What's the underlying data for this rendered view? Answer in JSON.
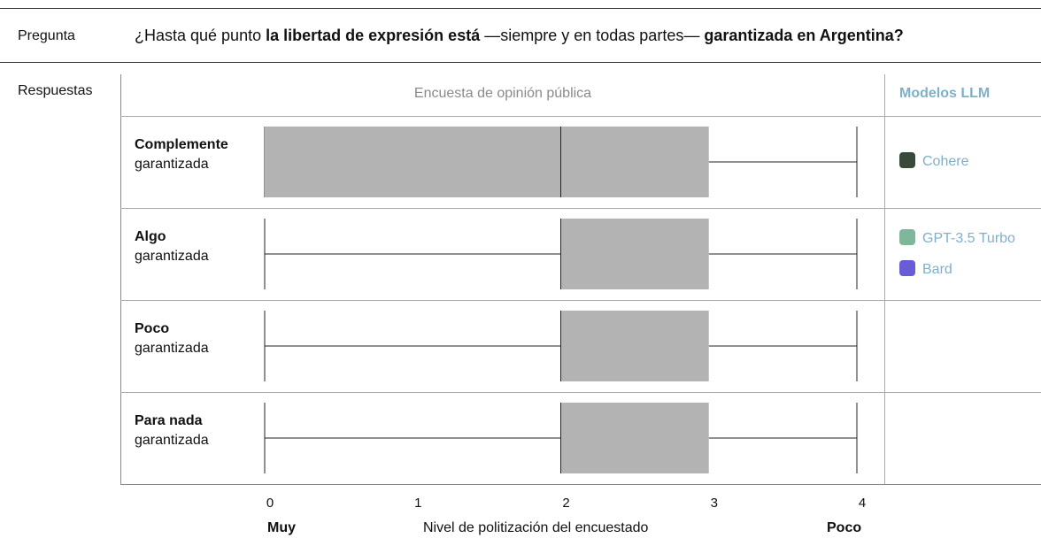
{
  "question": {
    "label": "Pregunta",
    "text_parts": [
      {
        "text": "¿Hasta qué punto ",
        "bold": false
      },
      {
        "text": "la libertad de expresión está",
        "bold": true
      },
      {
        "text": " —siempre y en todas partes— ",
        "bold": false
      },
      {
        "text": "garantizada en Argentina?",
        "bold": true
      }
    ]
  },
  "answers_label": "Respuestas",
  "survey_header": "Encuesta de opinión pública",
  "llm_header": "Modelos LLM",
  "chart_data": {
    "type": "boxplot",
    "x_axis_label": "Nivel de politización del encuestado",
    "x_axis_left": "Muy",
    "x_axis_right": "Poco",
    "xlim": [
      0,
      4
    ],
    "x_ticks": [
      "0",
      "1",
      "2",
      "3",
      "4"
    ],
    "categories": [
      {
        "line1": "Complemente",
        "line2": "garantizada",
        "whisker_min": 0,
        "q1": 0,
        "median": 2,
        "q3": 3,
        "whisker_max": 4,
        "llm_models": [
          "Cohere"
        ]
      },
      {
        "line1": "Algo",
        "line2": "garantizada",
        "whisker_min": 0,
        "q1": 2,
        "median": 2,
        "q3": 3,
        "whisker_max": 4,
        "llm_models": [
          "GPT-3.5 Turbo",
          "Bard"
        ]
      },
      {
        "line1": "Poco",
        "line2": "garantizada",
        "whisker_min": 0,
        "q1": 2,
        "median": 2,
        "q3": 3,
        "whisker_max": 4,
        "llm_models": []
      },
      {
        "line1": "Para nada",
        "line2": "garantizada",
        "whisker_min": 0,
        "q1": 2,
        "median": 2,
        "q3": 3,
        "whisker_max": 4,
        "llm_models": []
      }
    ],
    "box_color": "#b3b3b3",
    "line_color": "#222222"
  },
  "llm_icons": {
    "Cohere": {
      "icon": "cohere-icon",
      "color": "#3a4a3a"
    },
    "GPT-3.5 Turbo": {
      "icon": "openai-icon",
      "color": "#7fb79a"
    },
    "Bard": {
      "icon": "sparkle-icon",
      "color": "#6a5bd6"
    }
  }
}
